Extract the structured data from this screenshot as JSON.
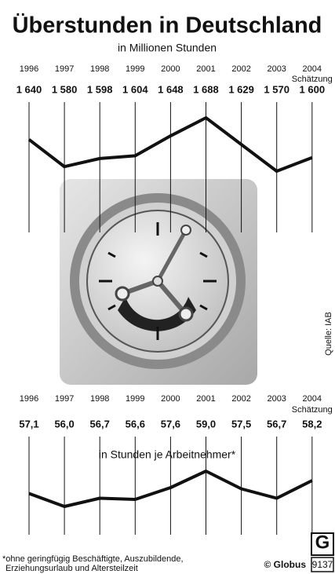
{
  "title": "Überstunden in Deutschland",
  "source": "Quelle: IAB",
  "footnote": [
    "*ohne geringfügig Beschäftigte, Auszubildende,",
    "Erziehungsurlaub und Altersteilzeit"
  ],
  "credit": "© Globus",
  "logo_letter": "G",
  "logo_number": "9137",
  "chart_data": [
    {
      "type": "line",
      "subtitle": "in Millionen Stunden",
      "categories": [
        "1996",
        "1997",
        "1998",
        "1999",
        "2000",
        "2001",
        "2002",
        "2003",
        "2004"
      ],
      "estimate_note": "Schätzung",
      "values": [
        1640,
        1580,
        1598,
        1604,
        1648,
        1688,
        1629,
        1570,
        1600
      ],
      "value_labels": [
        "1 640",
        "1 580",
        "1 598",
        "1 604",
        "1 648",
        "1 688",
        "1 629",
        "1 570",
        "1 600"
      ],
      "color": "#111111"
    },
    {
      "type": "line",
      "subtitle": "in Stunden je Arbeitnehmer*",
      "categories": [
        "1996",
        "1997",
        "1998",
        "1999",
        "2000",
        "2001",
        "2002",
        "2003",
        "2004"
      ],
      "estimate_note": "Schätzung",
      "values": [
        57.1,
        56.0,
        56.7,
        56.6,
        57.6,
        59.0,
        57.5,
        56.7,
        58.2
      ],
      "value_labels": [
        "57,1",
        "56,0",
        "56,7",
        "56,6",
        "57,6",
        "59,0",
        "57,5",
        "56,7",
        "58,2"
      ],
      "color": "#111111"
    }
  ]
}
